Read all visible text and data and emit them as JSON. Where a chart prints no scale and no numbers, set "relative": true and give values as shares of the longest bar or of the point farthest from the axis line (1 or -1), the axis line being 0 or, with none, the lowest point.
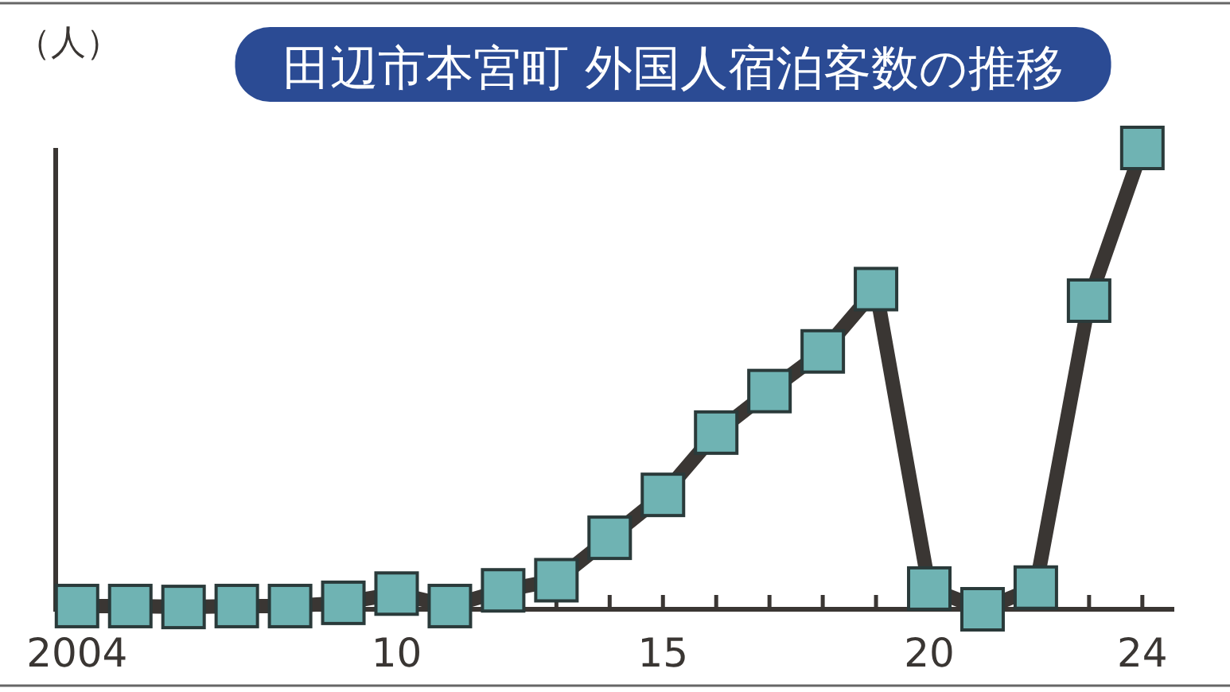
{
  "chart_data": {
    "type": "line",
    "title": "田辺市本宮町 外国人宿泊客数の推移",
    "annotations": [
      "（人）"
    ],
    "relative": true,
    "x": [
      2004,
      2005,
      2006,
      2007,
      2008,
      2009,
      2010,
      2011,
      2012,
      2013,
      2014,
      2015,
      2016,
      2017,
      2018,
      2019,
      2020,
      2021,
      2022,
      2023,
      2024
    ],
    "series": [
      {
        "color": "#3a3633",
        "values": [
          0.007,
          0.007,
          0.005,
          0.007,
          0.007,
          0.014,
          0.034,
          0.007,
          0.041,
          0.063,
          0.155,
          0.248,
          0.383,
          0.473,
          0.559,
          0.694,
          0.045,
          0,
          0.047,
          0.669,
          1
        ]
      }
    ],
    "xlim": [
      2003.6,
      2024.6
    ],
    "xticks": [
      {
        "value": 2004,
        "label": "2004"
      },
      {
        "value": 2005,
        "label": null
      },
      {
        "value": 2006,
        "label": null
      },
      {
        "value": 2007,
        "label": null
      },
      {
        "value": 2008,
        "label": null
      },
      {
        "value": 2009,
        "label": null
      },
      {
        "value": 2010,
        "label": "10"
      },
      {
        "value": 2011,
        "label": null
      },
      {
        "value": 2012,
        "label": null
      },
      {
        "value": 2013,
        "label": null
      },
      {
        "value": 2014,
        "label": null
      },
      {
        "value": 2015,
        "label": "15"
      },
      {
        "value": 2016,
        "label": null
      },
      {
        "value": 2017,
        "label": null
      },
      {
        "value": 2018,
        "label": null
      },
      {
        "value": 2019,
        "label": null
      },
      {
        "value": 2020,
        "label": "20"
      },
      {
        "value": 2021,
        "label": null
      },
      {
        "value": 2022,
        "label": null
      },
      {
        "value": 2023,
        "label": null
      },
      {
        "value": 2024,
        "label": "24"
      }
    ],
    "marker": "square"
  }
}
